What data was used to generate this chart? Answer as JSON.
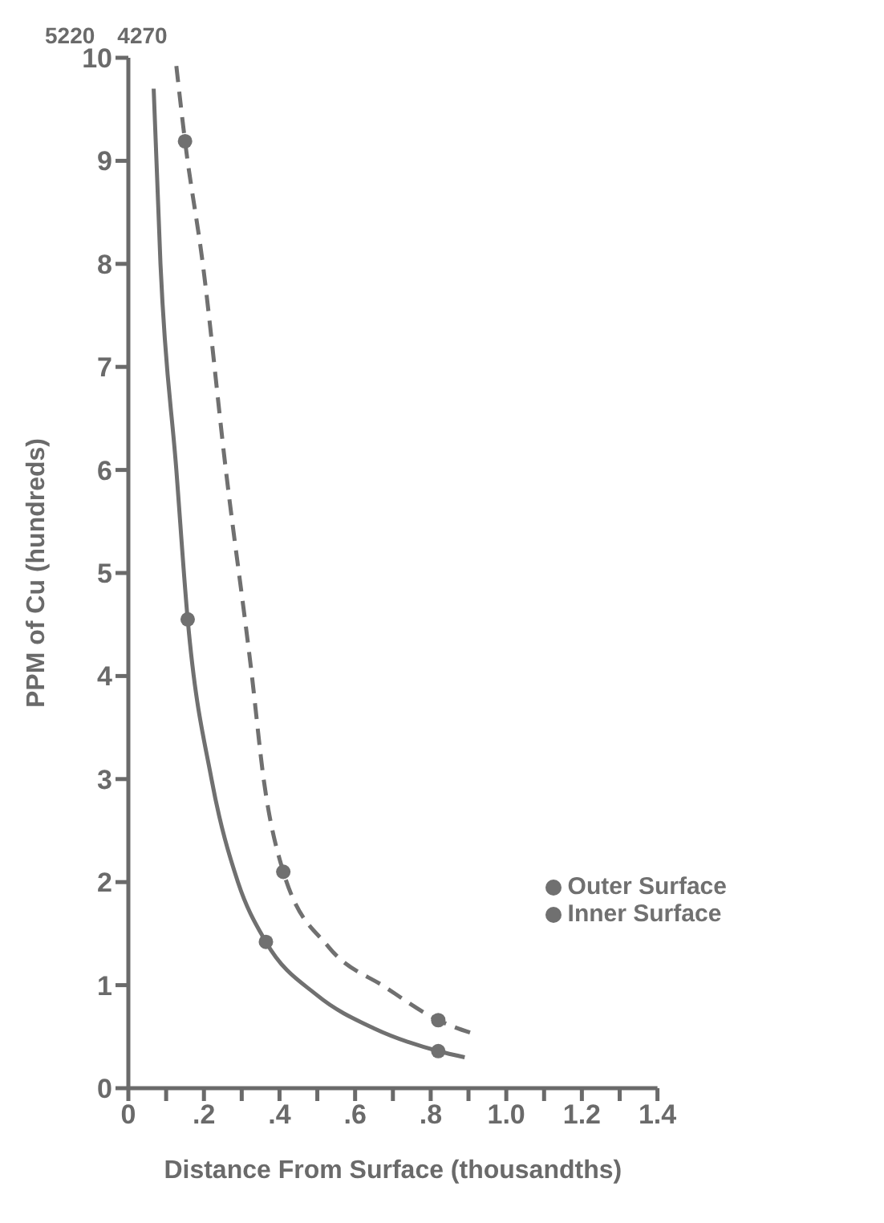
{
  "chart_data": {
    "type": "line",
    "xlabel": "Distance  From  Surface  (thousandths)",
    "ylabel": "PPM of Cu (hundreds)",
    "annotations": [
      "5220",
      "4270"
    ],
    "xlim": [
      0,
      1.4
    ],
    "ylim": [
      0,
      10
    ],
    "xticks": [
      0,
      {
        "value": 0.1,
        "label": null
      },
      {
        "value": 0.2,
        "label": ".2"
      },
      {
        "value": 0.3,
        "label": null
      },
      {
        "value": 0.4,
        "label": ".4"
      },
      {
        "value": 0.5,
        "label": null
      },
      {
        "value": 0.6,
        "label": ".6"
      },
      {
        "value": 0.7,
        "label": null
      },
      {
        "value": 0.8,
        "label": ".8"
      },
      {
        "value": 0.9,
        "label": null
      },
      {
        "value": 1.0,
        "label": "1.0"
      },
      {
        "value": 1.1,
        "label": null
      },
      {
        "value": 1.2,
        "label": "1.2"
      },
      {
        "value": 1.3,
        "label": null
      },
      {
        "value": 1.4,
        "label": "1.4"
      }
    ],
    "yticks": [
      0,
      1,
      2,
      3,
      4,
      5,
      6,
      7,
      8,
      9,
      10
    ],
    "grid": false,
    "legend": "bottom right",
    "series": [
      {
        "marker": "none",
        "color": "#707070",
        "line_style": "solid",
        "x": [
          0.067,
          0.085,
          0.127,
          0.157,
          0.22,
          0.29,
          0.364,
          0.5,
          0.65,
          0.82,
          0.89
        ],
        "values": [
          9.7,
          8,
          6,
          4.55,
          3,
          2,
          1.42,
          0.9,
          0.58,
          0.36,
          0.3
        ]
      },
      {
        "marker": "none",
        "color": "#707070",
        "line_style": "dashed",
        "x": [
          0.127,
          0.15,
          0.197,
          0.258,
          0.327,
          0.358,
          0.41,
          0.53,
          0.68,
          0.82,
          0.92
        ],
        "values": [
          9.92,
          9.19,
          8,
          6,
          4,
          3,
          2.1,
          1.37,
          0.98,
          0.66,
          0.52
        ]
      },
      {
        "type": "scatter",
        "marker": "circle",
        "name": "Outer Surface",
        "color": "#707070",
        "x": [
          0.157,
          0.364,
          0.82
        ],
        "values": [
          4.55,
          1.42,
          0.36
        ]
      },
      {
        "type": "scatter",
        "marker": "circle",
        "name": "Inner Surface",
        "color": "#707070",
        "x": [
          0.15,
          0.41,
          0.82
        ],
        "values": [
          9.19,
          2.1,
          0.66
        ]
      }
    ]
  }
}
